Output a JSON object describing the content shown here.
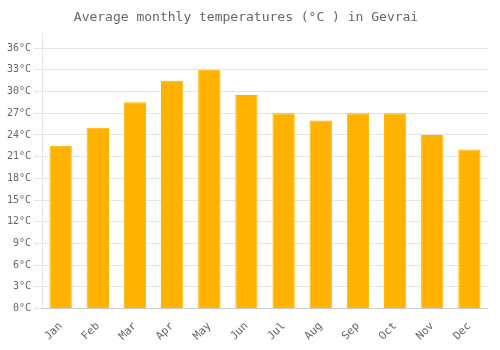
{
  "chart_data": {
    "type": "bar",
    "title": "Average monthly temperatures (°C ) in Gevrai",
    "categories": [
      "Jan",
      "Feb",
      "Mar",
      "Apr",
      "May",
      "Jun",
      "Jul",
      "Aug",
      "Sep",
      "Oct",
      "Nov",
      "Dec"
    ],
    "values": [
      22.5,
      25.0,
      28.5,
      31.5,
      33.0,
      29.5,
      27.0,
      26.0,
      27.0,
      27.0,
      24.0,
      22.0
    ],
    "color": "#FFB300",
    "ylim": [
      0,
      38
    ],
    "yticks": [
      {
        "value": 0,
        "label": "0°C"
      },
      {
        "value": 3,
        "label": "3°C"
      },
      {
        "value": 6,
        "label": "6°C"
      },
      {
        "value": 9,
        "label": "9°C"
      },
      {
        "value": 12,
        "label": "12°C"
      },
      {
        "value": 15,
        "label": "15°C"
      },
      {
        "value": 18,
        "label": "18°C"
      },
      {
        "value": 21,
        "label": "21°C"
      },
      {
        "value": 24,
        "label": "24°C"
      },
      {
        "value": 27,
        "label": "27°C"
      },
      {
        "value": 30,
        "label": "30°C"
      },
      {
        "value": 33,
        "label": "33°C"
      },
      {
        "value": 36,
        "label": "36°C"
      }
    ],
    "grid": true
  }
}
